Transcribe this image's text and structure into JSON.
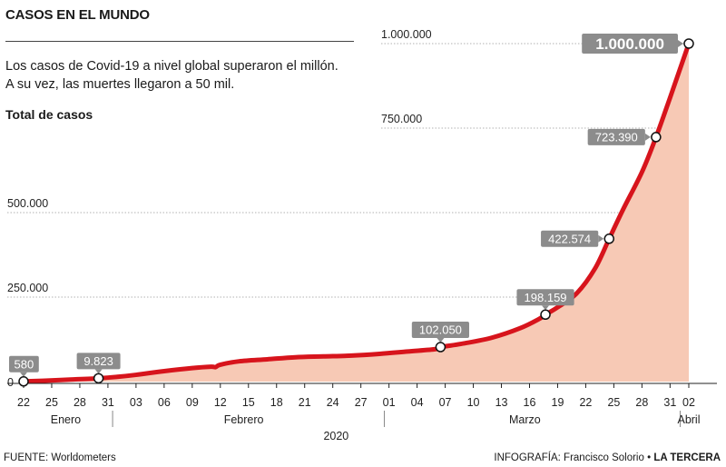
{
  "header": {
    "title": "CASOS EN EL MUNDO",
    "description_1": "Los casos de Covid-19 a nivel global superaron el millón.",
    "description_2": "A su vez, las muertes llegaron a 50 mil.",
    "subtitle": "Total de casos"
  },
  "footer": {
    "source": "FUENTE: Worldometers",
    "credit_prefix": "INFOGRAFÍA: Francisco Solorio • ",
    "credit_brand": "LA TERCERA"
  },
  "colors": {
    "line": "#d7141c",
    "area": "#f7c9b5",
    "label_bg": "#8c8c8c",
    "label_text": "#ffffff"
  },
  "chart_data": {
    "type": "area",
    "x_unit": "day index from 22 Jan 2020",
    "y_ticks": [
      {
        "value": 0,
        "label": "0"
      },
      {
        "value": 250000,
        "label": "250.000"
      },
      {
        "value": 500000,
        "label": "500.000"
      },
      {
        "value": 750000,
        "label": "750.000"
      },
      {
        "value": 1000000,
        "label": "1.000.000"
      }
    ],
    "ylim": [
      0,
      1000000
    ],
    "xlim": [
      0,
      71
    ],
    "x_ticks": [
      {
        "day": 0,
        "label": "22"
      },
      {
        "day": 3,
        "label": "25"
      },
      {
        "day": 6,
        "label": "28"
      },
      {
        "day": 9,
        "label": "31"
      },
      {
        "day": 12,
        "label": "03"
      },
      {
        "day": 15,
        "label": "06"
      },
      {
        "day": 18,
        "label": "09"
      },
      {
        "day": 21,
        "label": "12"
      },
      {
        "day": 24,
        "label": "15"
      },
      {
        "day": 27,
        "label": "18"
      },
      {
        "day": 30,
        "label": "21"
      },
      {
        "day": 33,
        "label": "24"
      },
      {
        "day": 36,
        "label": "27"
      },
      {
        "day": 39,
        "label": "01"
      },
      {
        "day": 42,
        "label": "04"
      },
      {
        "day": 45,
        "label": "07"
      },
      {
        "day": 48,
        "label": "10"
      },
      {
        "day": 51,
        "label": "13"
      },
      {
        "day": 54,
        "label": "16"
      },
      {
        "day": 57,
        "label": "19"
      },
      {
        "day": 60,
        "label": "22"
      },
      {
        "day": 63,
        "label": "25"
      },
      {
        "day": 66,
        "label": "28"
      },
      {
        "day": 69,
        "label": "31"
      },
      {
        "day": 71,
        "label": "02"
      }
    ],
    "months": [
      {
        "label": "Enero",
        "center_day": 4.5
      },
      {
        "label": "Febrero",
        "center_day": 23.5
      },
      {
        "label": "Marzo",
        "center_day": 53.5
      },
      {
        "label": "Abril",
        "center_day": 71
      }
    ],
    "month_dividers": [
      10,
      39,
      70
    ],
    "year": {
      "label": "2020",
      "center_day": 32
    },
    "series": [
      {
        "points": [
          [
            0,
            580
          ],
          [
            2,
            2500
          ],
          [
            5,
            6000
          ],
          [
            8,
            9823
          ],
          [
            10,
            14000
          ],
          [
            12,
            20000
          ],
          [
            15,
            31000
          ],
          [
            18,
            40000
          ],
          [
            20,
            44000
          ],
          [
            20.5,
            43000
          ],
          [
            21,
            50000
          ],
          [
            23,
            60000
          ],
          [
            26,
            66000
          ],
          [
            29,
            72000
          ],
          [
            32,
            74500
          ],
          [
            35,
            77000
          ],
          [
            38,
            82000
          ],
          [
            41,
            89000
          ],
          [
            44,
            96000
          ],
          [
            44.5,
            102050
          ],
          [
            47,
            113000
          ],
          [
            50,
            130000
          ],
          [
            53,
            158000
          ],
          [
            55,
            185000
          ],
          [
            55.7,
            198159
          ],
          [
            57,
            220000
          ],
          [
            59,
            260000
          ],
          [
            61,
            335000
          ],
          [
            62.5,
            422574
          ],
          [
            64,
            510000
          ],
          [
            66,
            620000
          ],
          [
            67.5,
            723390
          ],
          [
            69,
            840000
          ],
          [
            71,
            1000000
          ]
        ]
      }
    ],
    "markers": [
      {
        "day": 0,
        "value": 580,
        "label": "580",
        "pos": "above"
      },
      {
        "day": 8,
        "value": 9823,
        "label": "9.823",
        "pos": "above"
      },
      {
        "day": 44.5,
        "value": 102050,
        "label": "102.050",
        "pos": "above"
      },
      {
        "day": 55.7,
        "value": 198159,
        "label": "198.159",
        "pos": "above"
      },
      {
        "day": 62.5,
        "value": 422574,
        "label": "422.574",
        "pos": "left"
      },
      {
        "day": 67.5,
        "value": 723390,
        "label": "723.390",
        "pos": "left"
      },
      {
        "day": 71,
        "value": 1000000,
        "label": "1.000.000",
        "pos": "left-big"
      }
    ]
  }
}
